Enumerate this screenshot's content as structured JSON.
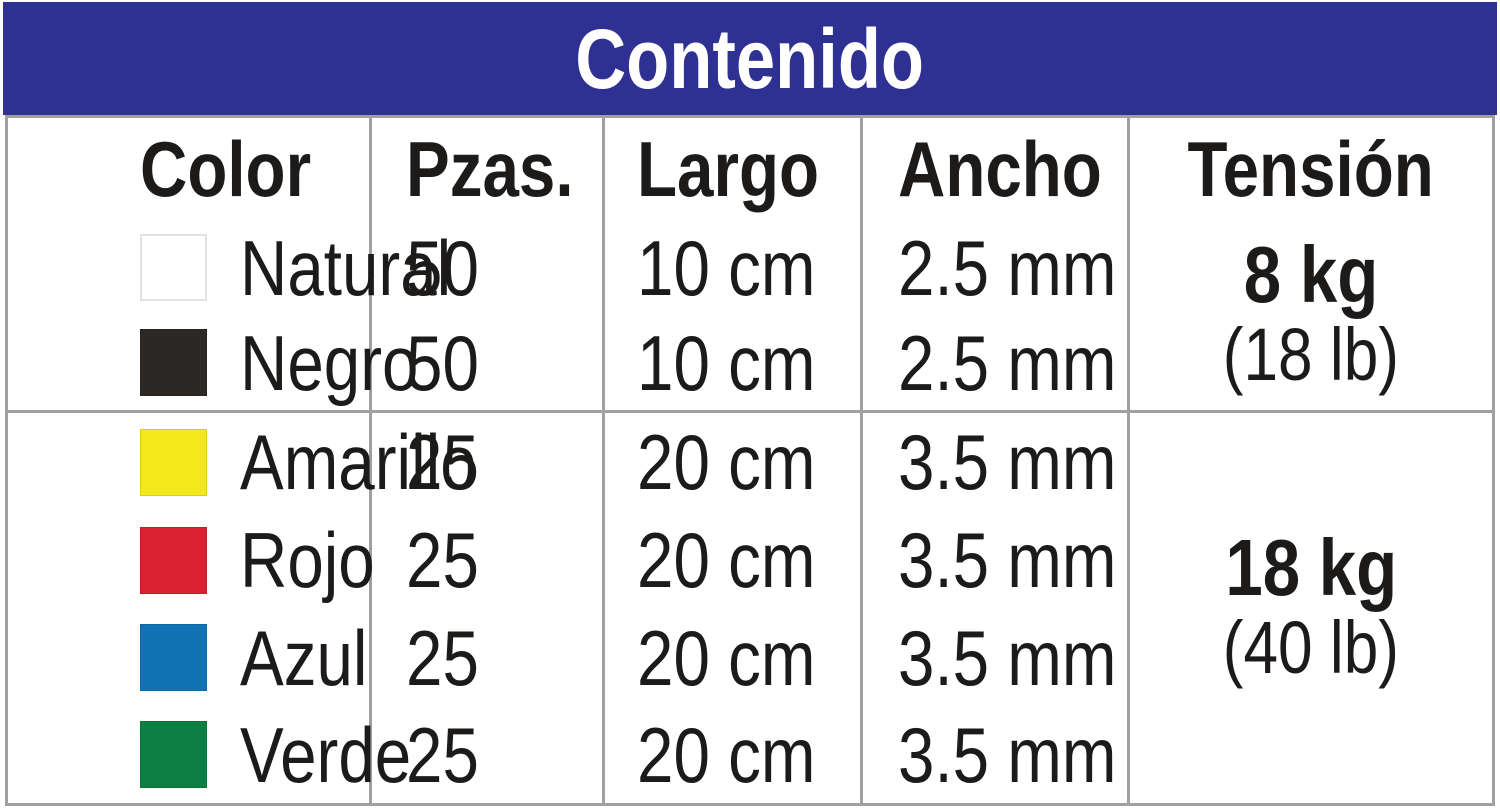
{
  "title": "Contenido",
  "columns": {
    "color": "Color",
    "pzas": "Pzas.",
    "largo": "Largo",
    "ancho": "Ancho",
    "tension": "Tensión"
  },
  "groups": [
    {
      "tension": {
        "kg": "8 kg",
        "lb": "(18 lb)"
      },
      "rows": [
        {
          "name": "Natural",
          "swatch": "#ffffff",
          "pzas": "50",
          "largo": "10 cm",
          "ancho": "2.5 mm"
        },
        {
          "name": "Negro",
          "swatch": "#2b2826",
          "pzas": "50",
          "largo": "10 cm",
          "ancho": "2.5 mm"
        }
      ]
    },
    {
      "tension": {
        "kg": "18 kg",
        "lb": "(40 lb)"
      },
      "rows": [
        {
          "name": "Amarillo",
          "swatch": "#f3e81c",
          "pzas": "25",
          "largo": "20 cm",
          "ancho": "3.5 mm"
        },
        {
          "name": "Rojo",
          "swatch": "#d92231",
          "pzas": "25",
          "largo": "20 cm",
          "ancho": "3.5 mm"
        },
        {
          "name": "Azul",
          "swatch": "#1173b3",
          "pzas": "25",
          "largo": "20 cm",
          "ancho": "3.5 mm"
        },
        {
          "name": "Verde",
          "swatch": "#0e7f42",
          "pzas": "25",
          "largo": "20 cm",
          "ancho": "3.5 mm"
        }
      ]
    }
  ],
  "colors": {
    "header_bg": "#2e3192",
    "header_text": "#ffffff",
    "grid": "#a0a0a0",
    "text": "#1d1b1a",
    "natural_border": "#e2e2e2"
  },
  "chart_data": {
    "type": "table",
    "title": "Contenido",
    "columns": [
      "Color",
      "Pzas.",
      "Largo",
      "Ancho",
      "Tensión"
    ],
    "rows": [
      [
        "Natural",
        "50",
        "10 cm",
        "2.5 mm",
        "8 kg (18 lb)"
      ],
      [
        "Negro",
        "50",
        "10 cm",
        "2.5 mm",
        "8 kg (18 lb)"
      ],
      [
        "Amarillo",
        "25",
        "20 cm",
        "3.5 mm",
        "18 kg (40 lb)"
      ],
      [
        "Rojo",
        "25",
        "20 cm",
        "3.5 mm",
        "18 kg (40 lb)"
      ],
      [
        "Azul",
        "25",
        "20 cm",
        "3.5 mm",
        "18 kg (40 lb)"
      ],
      [
        "Verde",
        "25",
        "20 cm",
        "3.5 mm",
        "18 kg (40 lb)"
      ]
    ],
    "swatch_colors": [
      "#ffffff",
      "#2b2826",
      "#f3e81c",
      "#d92231",
      "#1173b3",
      "#0e7f42"
    ]
  }
}
